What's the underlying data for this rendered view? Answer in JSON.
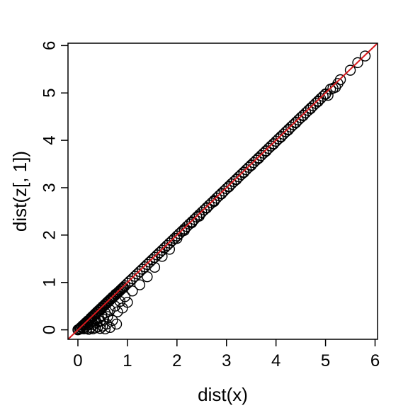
{
  "chart_data": {
    "type": "scatter",
    "xlabel": "dist(x)",
    "ylabel": "dist(z[, 1])",
    "xlim": [
      -0.2,
      6.05
    ],
    "ylim": [
      -0.2,
      6.05
    ],
    "x_ticks": [
      "0",
      "1",
      "2",
      "3",
      "4",
      "5",
      "6"
    ],
    "y_ticks": [
      "0",
      "1",
      "2",
      "3",
      "4",
      "5",
      "6"
    ],
    "x_tick_values": [
      0,
      1,
      2,
      3,
      4,
      5,
      6
    ],
    "y_tick_values": [
      0,
      1,
      2,
      3,
      4,
      5,
      6
    ],
    "point_color": "#000000",
    "reference_line": {
      "type": "identity",
      "intercept": 0,
      "slope": 1,
      "color": "#d7191c"
    },
    "grid": false,
    "legend": "none",
    "points": [
      [
        0.0,
        0.0
      ],
      [
        0.02,
        0.01
      ],
      [
        0.04,
        0.03
      ],
      [
        0.05,
        0.02
      ],
      [
        0.06,
        0.05
      ],
      [
        0.08,
        0.07
      ],
      [
        0.1,
        0.09
      ],
      [
        0.1,
        0.04
      ],
      [
        0.12,
        0.11
      ],
      [
        0.12,
        0.02
      ],
      [
        0.14,
        0.12
      ],
      [
        0.15,
        0.06
      ],
      [
        0.16,
        0.15
      ],
      [
        0.18,
        0.16
      ],
      [
        0.18,
        0.03
      ],
      [
        0.2,
        0.19
      ],
      [
        0.2,
        0.1
      ],
      [
        0.22,
        0.2
      ],
      [
        0.22,
        0.01
      ],
      [
        0.24,
        0.22
      ],
      [
        0.25,
        0.14
      ],
      [
        0.26,
        0.25
      ],
      [
        0.26,
        0.05
      ],
      [
        0.28,
        0.26
      ],
      [
        0.28,
        0.18
      ],
      [
        0.3,
        0.29
      ],
      [
        0.3,
        0.02
      ],
      [
        0.32,
        0.3
      ],
      [
        0.32,
        0.11
      ],
      [
        0.34,
        0.33
      ],
      [
        0.35,
        0.22
      ],
      [
        0.35,
        0.04
      ],
      [
        0.36,
        0.34
      ],
      [
        0.38,
        0.37
      ],
      [
        0.38,
        0.15
      ],
      [
        0.4,
        0.38
      ],
      [
        0.4,
        0.06
      ],
      [
        0.42,
        0.41
      ],
      [
        0.42,
        0.25
      ],
      [
        0.44,
        0.42
      ],
      [
        0.45,
        0.03
      ],
      [
        0.45,
        0.18
      ],
      [
        0.46,
        0.45
      ],
      [
        0.48,
        0.46
      ],
      [
        0.48,
        0.3
      ],
      [
        0.5,
        0.49
      ],
      [
        0.5,
        0.08
      ],
      [
        0.52,
        0.5
      ],
      [
        0.52,
        0.22
      ],
      [
        0.54,
        0.53
      ],
      [
        0.55,
        0.02
      ],
      [
        0.55,
        0.36
      ],
      [
        0.56,
        0.54
      ],
      [
        0.58,
        0.57
      ],
      [
        0.58,
        0.12
      ],
      [
        0.6,
        0.58
      ],
      [
        0.6,
        0.28
      ],
      [
        0.62,
        0.61
      ],
      [
        0.64,
        0.62
      ],
      [
        0.65,
        0.05
      ],
      [
        0.65,
        0.42
      ],
      [
        0.66,
        0.65
      ],
      [
        0.68,
        0.66
      ],
      [
        0.7,
        0.69
      ],
      [
        0.7,
        0.2
      ],
      [
        0.72,
        0.7
      ],
      [
        0.74,
        0.72
      ],
      [
        0.75,
        0.5
      ],
      [
        0.76,
        0.75
      ],
      [
        0.78,
        0.12
      ],
      [
        0.78,
        0.76
      ],
      [
        0.8,
        0.78
      ],
      [
        0.8,
        0.38
      ],
      [
        0.82,
        0.8
      ],
      [
        0.84,
        0.82
      ],
      [
        0.85,
        0.6
      ],
      [
        0.86,
        0.84
      ],
      [
        0.88,
        0.86
      ],
      [
        0.9,
        0.88
      ],
      [
        0.9,
        0.46
      ],
      [
        0.92,
        0.9
      ],
      [
        0.95,
        0.93
      ],
      [
        0.95,
        0.7
      ],
      [
        1.0,
        0.98
      ],
      [
        1.0,
        0.58
      ],
      [
        1.05,
        1.03
      ],
      [
        1.1,
        1.08
      ],
      [
        1.1,
        0.82
      ],
      [
        1.15,
        1.13
      ],
      [
        1.2,
        1.18
      ],
      [
        1.25,
        0.95
      ],
      [
        1.25,
        1.23
      ],
      [
        1.3,
        1.28
      ],
      [
        1.35,
        1.33
      ],
      [
        1.4,
        1.12
      ],
      [
        1.4,
        1.38
      ],
      [
        1.45,
        1.43
      ],
      [
        1.5,
        1.48
      ],
      [
        1.55,
        1.32
      ],
      [
        1.55,
        1.53
      ],
      [
        1.6,
        1.58
      ],
      [
        1.65,
        1.63
      ],
      [
        1.7,
        1.55
      ],
      [
        1.7,
        1.68
      ],
      [
        1.75,
        1.73
      ],
      [
        1.8,
        1.78
      ],
      [
        1.85,
        1.7
      ],
      [
        1.85,
        1.83
      ],
      [
        1.9,
        1.88
      ],
      [
        1.95,
        1.93
      ],
      [
        2.0,
        1.93
      ],
      [
        2.0,
        1.98
      ],
      [
        2.05,
        2.03
      ],
      [
        2.1,
        2.08
      ],
      [
        2.15,
        2.1
      ],
      [
        2.15,
        2.13
      ],
      [
        2.2,
        2.18
      ],
      [
        2.25,
        2.23
      ],
      [
        2.3,
        2.26
      ],
      [
        2.3,
        2.28
      ],
      [
        2.35,
        2.33
      ],
      [
        2.4,
        2.38
      ],
      [
        2.45,
        2.4
      ],
      [
        2.45,
        2.43
      ],
      [
        2.5,
        2.48
      ],
      [
        2.55,
        2.53
      ],
      [
        2.6,
        2.57
      ],
      [
        2.6,
        2.58
      ],
      [
        2.65,
        2.63
      ],
      [
        2.7,
        2.68
      ],
      [
        2.75,
        2.71
      ],
      [
        2.75,
        2.73
      ],
      [
        2.8,
        2.78
      ],
      [
        2.85,
        2.83
      ],
      [
        2.9,
        2.87
      ],
      [
        2.9,
        2.88
      ],
      [
        2.95,
        2.93
      ],
      [
        3.0,
        2.98
      ],
      [
        3.05,
        3.02
      ],
      [
        3.05,
        3.03
      ],
      [
        3.1,
        3.08
      ],
      [
        3.15,
        3.13
      ],
      [
        3.2,
        3.17
      ],
      [
        3.2,
        3.18
      ],
      [
        3.25,
        3.23
      ],
      [
        3.3,
        3.28
      ],
      [
        3.35,
        3.32
      ],
      [
        3.35,
        3.33
      ],
      [
        3.4,
        3.38
      ],
      [
        3.45,
        3.43
      ],
      [
        3.5,
        3.47
      ],
      [
        3.5,
        3.48
      ],
      [
        3.55,
        3.53
      ],
      [
        3.6,
        3.58
      ],
      [
        3.65,
        3.62
      ],
      [
        3.65,
        3.63
      ],
      [
        3.7,
        3.68
      ],
      [
        3.75,
        3.73
      ],
      [
        3.8,
        3.77
      ],
      [
        3.8,
        3.78
      ],
      [
        3.85,
        3.83
      ],
      [
        3.9,
        3.88
      ],
      [
        3.95,
        3.92
      ],
      [
        3.95,
        3.93
      ],
      [
        4.0,
        3.98
      ],
      [
        4.05,
        4.03
      ],
      [
        4.1,
        4.07
      ],
      [
        4.1,
        4.08
      ],
      [
        4.15,
        4.13
      ],
      [
        4.2,
        4.18
      ],
      [
        4.25,
        4.22
      ],
      [
        4.25,
        4.23
      ],
      [
        4.3,
        4.28
      ],
      [
        4.35,
        4.33
      ],
      [
        4.4,
        4.37
      ],
      [
        4.4,
        4.38
      ],
      [
        4.45,
        4.43
      ],
      [
        4.5,
        4.48
      ],
      [
        4.55,
        4.52
      ],
      [
        4.55,
        4.53
      ],
      [
        4.6,
        4.58
      ],
      [
        4.65,
        4.63
      ],
      [
        4.7,
        4.67
      ],
      [
        4.7,
        4.68
      ],
      [
        4.75,
        4.73
      ],
      [
        4.8,
        4.78
      ],
      [
        4.85,
        4.82
      ],
      [
        4.85,
        4.83
      ],
      [
        4.9,
        4.88
      ],
      [
        4.95,
        4.93
      ],
      [
        5.0,
        4.97
      ],
      [
        5.0,
        4.98
      ],
      [
        5.05,
        4.95
      ],
      [
        5.1,
        5.08
      ],
      [
        5.15,
        5.1
      ],
      [
        5.2,
        5.12
      ],
      [
        5.25,
        5.2
      ],
      [
        5.3,
        5.28
      ],
      [
        5.5,
        5.48
      ],
      [
        5.65,
        5.64
      ],
      [
        5.8,
        5.78
      ]
    ]
  }
}
